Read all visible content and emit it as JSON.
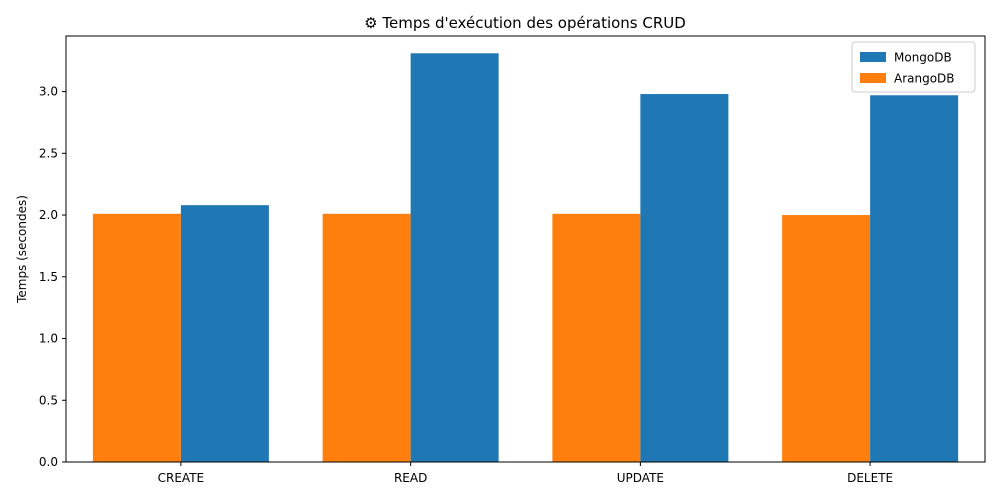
{
  "chart_data": {
    "type": "bar",
    "title": "⚙ Temps d'exécution des opérations CRUD",
    "xlabel": "",
    "ylabel": "Temps (secondes)",
    "categories": [
      "CREATE",
      "READ",
      "UPDATE",
      "DELETE"
    ],
    "ylim": [
      0,
      3.45
    ],
    "yticks": [
      0.0,
      0.5,
      1.0,
      1.5,
      2.0,
      2.5,
      3.0
    ],
    "ytick_labels": [
      "0.0",
      "0.5",
      "1.0",
      "1.5",
      "2.0",
      "2.5",
      "3.0"
    ],
    "grid": false,
    "legend_position": "top-right",
    "series": [
      {
        "name": "ArangoDB",
        "color": "#ff7f0e",
        "values": [
          2.01,
          2.01,
          2.01,
          2.0
        ]
      },
      {
        "name": "MongoDB",
        "color": "#1f77b4",
        "values": [
          2.08,
          3.31,
          2.98,
          2.97
        ]
      }
    ],
    "legend_order": [
      "MongoDB",
      "ArangoDB"
    ]
  }
}
